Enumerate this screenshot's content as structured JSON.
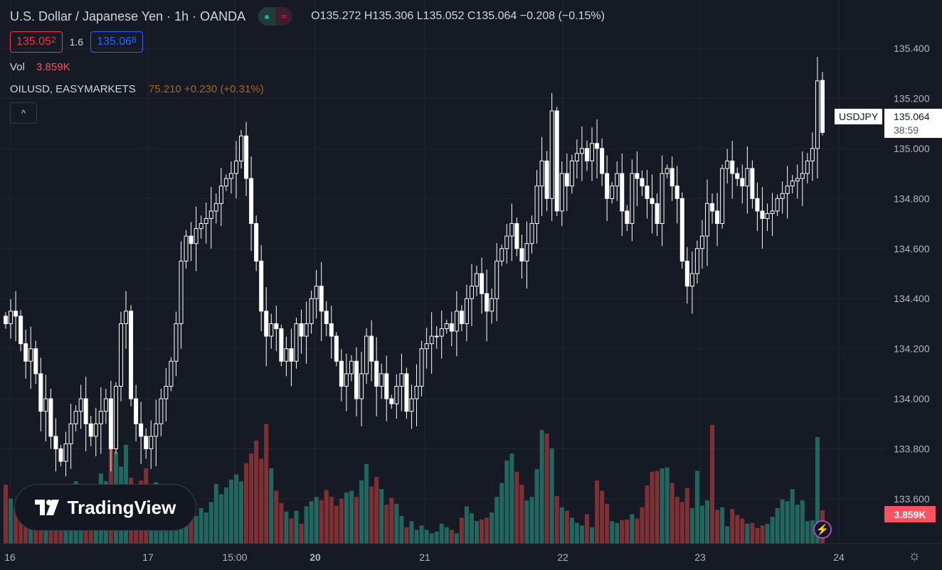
{
  "header": {
    "title": "U.S. Dollar / Japanese Yen · 1h · OANDA",
    "status_open_icon": "market-open-dot",
    "status_delay_icon": "approx-icon",
    "ohlc": "O135.272 H135.306 L135.052 C135.064 −0.208 (−0.15%)",
    "sell_price": "135.05",
    "sell_price_sup": "2",
    "spread": "1.6",
    "buy_price": "135.06",
    "buy_price_sup": "8",
    "vol_label": "Vol",
    "vol_value": "3.859K",
    "compare_symbol": "OILUSD, EASYMARKETS",
    "compare_value": "75.210 +0.230 (+0.31%)",
    "collapse_icon": "chevron-up-icon"
  },
  "logo_text": "TradingView",
  "price_tag": {
    "symbol": "USDJPY",
    "price": "135.064",
    "countdown": "38:59"
  },
  "volume_tag": "3.859K",
  "colors": {
    "background": "#161a25",
    "grid": "#232632",
    "candle": "#ffffff",
    "vol_up": "#22675f",
    "vol_down": "#7e3034",
    "text": "#d1d4dc"
  },
  "chart_data": {
    "type": "candlestick",
    "symbol": "USDJPY",
    "interval": "1h",
    "y_ticks": [
      "135.400",
      "135.200",
      "135.000",
      "134.800",
      "134.600",
      "134.400",
      "134.200",
      "134.000",
      "133.800",
      "133.600"
    ],
    "ylim": [
      133.6,
      135.4
    ],
    "x_ticks": [
      "16",
      "17",
      "15:00",
      "20",
      "21",
      "22",
      "23",
      "24"
    ],
    "grid": true,
    "last_bar": {
      "open": 135.272,
      "high": 135.306,
      "low": 135.052,
      "close": 135.064
    },
    "closes": [
      134.3,
      134.35,
      134.33,
      134.22,
      134.15,
      134.2,
      134.1,
      133.95,
      134.0,
      133.85,
      133.8,
      133.75,
      133.82,
      133.9,
      133.95,
      134.0,
      133.9,
      133.85,
      133.9,
      133.95,
      134.0,
      133.8,
      134.05,
      134.3,
      134.35,
      134.0,
      133.9,
      133.85,
      133.8,
      133.85,
      133.9,
      134.0,
      134.05,
      134.15,
      134.3,
      134.55,
      134.65,
      134.62,
      134.68,
      134.7,
      134.72,
      134.75,
      134.78,
      134.85,
      134.88,
      134.9,
      134.95,
      135.05,
      134.88,
      134.7,
      134.55,
      134.35,
      134.25,
      134.3,
      134.28,
      134.15,
      134.2,
      134.15,
      134.3,
      134.25,
      134.3,
      134.4,
      134.45,
      134.35,
      134.3,
      134.25,
      134.15,
      134.05,
      134.1,
      134.15,
      134.0,
      134.1,
      134.25,
      134.15,
      134.05,
      134.1,
      134.0,
      133.98,
      134.05,
      134.1,
      133.95,
      134.0,
      134.05,
      134.2,
      134.22,
      134.25,
      134.25,
      134.28,
      134.3,
      134.27,
      134.35,
      134.3,
      134.4,
      134.45,
      134.5,
      134.42,
      134.35,
      134.4,
      134.55,
      134.6,
      134.65,
      134.7,
      134.6,
      134.55,
      134.62,
      134.7,
      134.85,
      134.95,
      134.8,
      135.15,
      134.75,
      134.9,
      134.85,
      134.95,
      134.98,
      135.0,
      134.95,
      135.02,
      135.0,
      134.9,
      134.8,
      134.85,
      134.9,
      134.75,
      134.7,
      134.9,
      134.88,
      134.85,
      134.8,
      134.78,
      134.7,
      134.9,
      134.92,
      134.85,
      134.8,
      134.55,
      134.45,
      134.5,
      134.6,
      134.65,
      134.78,
      134.75,
      134.7,
      134.92,
      134.95,
      134.9,
      134.88,
      134.85,
      134.92,
      134.8,
      134.75,
      134.72,
      134.74,
      134.75,
      134.8,
      134.82,
      134.85,
      134.87,
      134.88,
      134.9,
      134.95,
      135.0,
      135.27,
      135.064
    ],
    "volumes_k": [
      6.8,
      5.2,
      4.1,
      3.5,
      2.9,
      4.2,
      3.8,
      3.1,
      6.5,
      4.6,
      3.2,
      2.5,
      5.1,
      4.8,
      7.2,
      6.0,
      5.3,
      6.8,
      5.5,
      8.1,
      7.2,
      12.3,
      10.6,
      8.9,
      11.4,
      7.6,
      6.2,
      7.3,
      8.7,
      5.9,
      7.1,
      6.4,
      4.9,
      5.6,
      3.8,
      4.6,
      3.9,
      3.7,
      3.2,
      4.1,
      3.6,
      4.8,
      6.9,
      5.7,
      6.5,
      7.4,
      8.0,
      7.2,
      9.3,
      10.4,
      11.9,
      9.8,
      13.8,
      8.7,
      6.1,
      4.7,
      3.7,
      2.9,
      3.8,
      2.3,
      4.3,
      4.9,
      5.4,
      5.0,
      6.2,
      5.4,
      4.4,
      5.2,
      5.9,
      6.1,
      5.4,
      7.3,
      9.2,
      6.6,
      7.7,
      6.3,
      4.5,
      5.3,
      4.6,
      3.2,
      1.9,
      2.6,
      1.6,
      2.1,
      1.6,
      1.2,
      1.4,
      2.3,
      1.9,
      1.6,
      1.2,
      3.0,
      4.3,
      3.5,
      2.6,
      2.8,
      3.0,
      3.6,
      5.4,
      7.0,
      9.6,
      10.4,
      8.3,
      6.8,
      5.0,
      5.4,
      8.6,
      13.1,
      12.7,
      11.0,
      5.5,
      4.2,
      3.8,
      3.0,
      2.4,
      2.1,
      3.4,
      1.9,
      7.3,
      6.1,
      4.6,
      2.6,
      2.4,
      2.7,
      2.8,
      3.4,
      2.9,
      4.2,
      6.7,
      8.3,
      8.4,
      8.7,
      8.8,
      7.0,
      5.4,
      4.8,
      6.4,
      4.1,
      8.4,
      4.4,
      5.0,
      13.7,
      3.9,
      4.2,
      2.0,
      4.0,
      3.3,
      2.9,
      2.3,
      2.4,
      1.8,
      2.1,
      2.3,
      3.1,
      4.1,
      5.1,
      4.9,
      6.3,
      4.5,
      5.0,
      2.6,
      2.7,
      12.3,
      3.859
    ]
  }
}
